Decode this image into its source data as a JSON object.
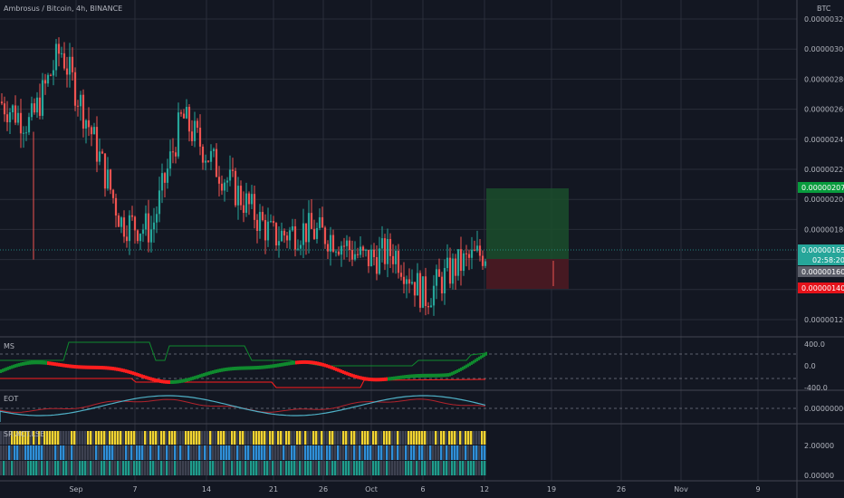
{
  "header": {
    "symbol_title": "Ambrosus / Bitcoin, 4h, BINANCE",
    "currency": "BTC"
  },
  "colors": {
    "background": "#131722",
    "grid": "#2a2e39",
    "up": "#26a69a",
    "down": "#ef5350",
    "long_zone": "#1b4d2c",
    "short_zone": "#4d1a22",
    "target_tag": "#089b3d",
    "stop_tag": "#e5121a",
    "last_tag": "#26a69a",
    "ms_green": "#0f8a2e",
    "ms_red": "#ff1e1e",
    "eot_red": "#b3232c",
    "eot_teal": "#4fb0c6",
    "act_yellow": "#f2d431",
    "act_blue": "#2f8fd8",
    "act_teal": "#1f9c8c",
    "act_gray": "#3d4150"
  },
  "price_axis": {
    "ticks": [
      "0.00000320",
      "0.00000300",
      "0.00000280",
      "0.00000260",
      "0.00000240",
      "0.00000220",
      "0.00000200",
      "0.00000180",
      "0.00000160",
      "0.00000140",
      "0.00000120"
    ],
    "target_label": "0.00000207",
    "last_price_label": "0.00000165",
    "countdown_label": "02:58:20",
    "entry_label": "0.00000160",
    "stop_label": "0.00000140"
  },
  "time_axis": {
    "labels": [
      "Sep",
      "7",
      "14",
      "21",
      "26",
      "Oct",
      "6",
      "12",
      "19",
      "26",
      "Nov",
      "9"
    ]
  },
  "ms_panel": {
    "title": "MS",
    "ticks": [
      "400.0",
      "0.0",
      "-400.0"
    ]
  },
  "eot_panel": {
    "title": "EOT",
    "ticks": [
      "0.00000000"
    ]
  },
  "act_panel": {
    "title": "SR ACT.LSE",
    "ticks": [
      "2.00000",
      "0.00000"
    ]
  },
  "chart_data": {
    "type": "candlestick",
    "title": "Ambrosus / Bitcoin, 4h, BINANCE",
    "timeframe": "4h",
    "exchange": "BINANCE",
    "ylim": [
      1.13e-06,
      3.25e-06
    ],
    "approx_close_path": [
      {
        "x": "Aug 28",
        "close": 2.65e-06
      },
      {
        "x": "Aug 30",
        "close": 2.5e-06
      },
      {
        "x": "Sep 1",
        "close": 3e-06
      },
      {
        "x": "Sep 3",
        "close": 2.45e-06
      },
      {
        "x": "Sep 6",
        "close": 1.85e-06
      },
      {
        "x": "Sep 9",
        "close": 1.8e-06
      },
      {
        "x": "Sep 11",
        "close": 2.55e-06
      },
      {
        "x": "Sep 14",
        "close": 2.25e-06
      },
      {
        "x": "Sep 17",
        "close": 2e-06
      },
      {
        "x": "Sep 21",
        "close": 1.75e-06
      },
      {
        "x": "Sep 25",
        "close": 1.8e-06
      },
      {
        "x": "Sep 29",
        "close": 1.75e-06
      },
      {
        "x": "Oct 2",
        "close": 1.6e-06
      },
      {
        "x": "Oct 5",
        "close": 1.65e-06
      },
      {
        "x": "Oct 8",
        "close": 1.35e-06
      },
      {
        "x": "Oct 10",
        "close": 1.55e-06
      },
      {
        "x": "Oct 12",
        "close": 1.65e-06
      }
    ],
    "position": {
      "side": "long",
      "entry": 1.6e-06,
      "target": 2.07e-06,
      "stop": 1.4e-06,
      "last_price": 1.65e-06
    },
    "grid": true
  }
}
